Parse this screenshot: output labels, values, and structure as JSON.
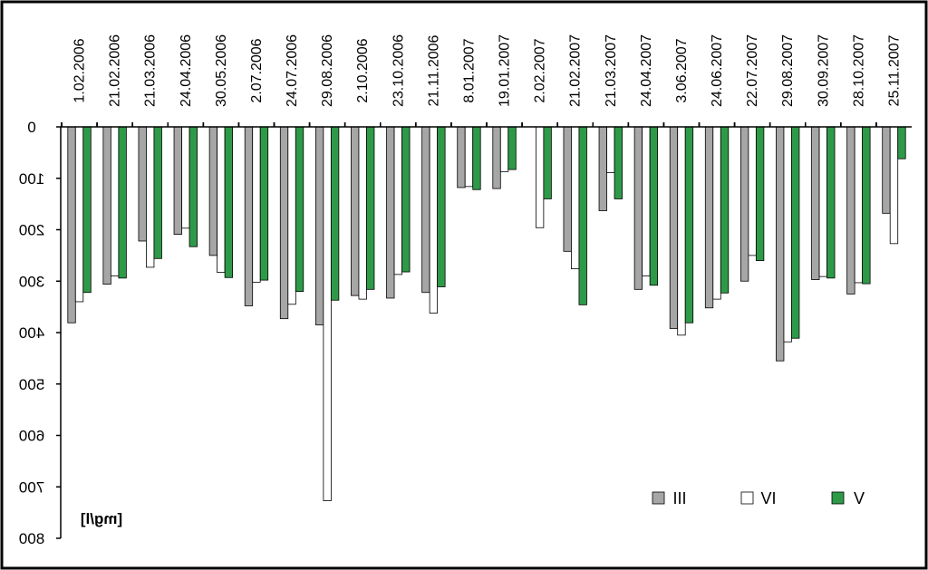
{
  "chart_data": {
    "type": "bar",
    "orientation": "inverted-y, mirrored",
    "unit_label": "[mg/l]",
    "ylim": [
      0,
      800
    ],
    "y_ticks": [
      0,
      100,
      200,
      300,
      400,
      500,
      600,
      700,
      800
    ],
    "y_tick_labels": [
      "0",
      "100",
      "200",
      "300",
      "400",
      "500",
      "600",
      "700",
      "800"
    ],
    "categories": [
      "1.02.2006",
      "21.02.2006",
      "21.03.2006",
      "24.04.2006",
      "30.05.2006",
      "2.07.2006",
      "24.07.2006",
      "29.08.2006",
      "2.10.2006",
      "23.10.2006",
      "21.11.2006",
      "8.01.2007",
      "19.01.2007",
      "2.02.2007",
      "21.02.2007",
      "21.03.2007",
      "24.04.2007",
      "3.06.2007",
      "24.06.2007",
      "22.07.2007",
      "29.08.2007",
      "30.09.2007",
      "28.10.2007",
      "25.11.2007"
    ],
    "series": [
      {
        "name": "III",
        "color": "#a6a6a6",
        "values": [
          381,
          306,
          222,
          209,
          250,
          348,
          373,
          385,
          328,
          333,
          322,
          118,
          120,
          null,
          242,
          163,
          316,
          392,
          352,
          300,
          455,
          297,
          325,
          168
        ]
      },
      {
        "name": "IV",
        "color": "#ffffff",
        "values": [
          340,
          290,
          273,
          197,
          283,
          302,
          345,
          727,
          335,
          287,
          362,
          116,
          87,
          196,
          276,
          89,
          290,
          405,
          335,
          250,
          418,
          291,
          303,
          227
        ]
      },
      {
        "name": "V",
        "color": "#2e9a48",
        "values": [
          322,
          294,
          256,
          233,
          293,
          298,
          320,
          337,
          316,
          282,
          311,
          122,
          83,
          140,
          346,
          140,
          308,
          381,
          323,
          260,
          411,
          294,
          305,
          62
        ]
      }
    ],
    "legend": {
      "position": "bottom-right",
      "items": [
        "III",
        "IV",
        "V"
      ]
    },
    "grid": false
  }
}
